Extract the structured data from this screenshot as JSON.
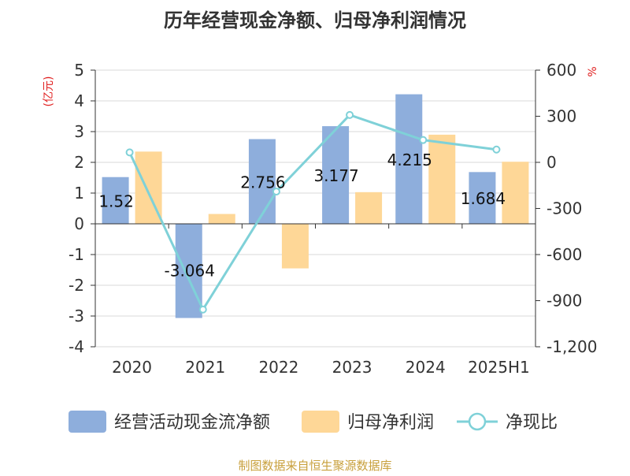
{
  "title": "历年经营现金净额、归母净利润情况",
  "left_unit": "(亿元)",
  "right_unit": "%",
  "source": "制图数据来自恒生聚源数据库",
  "colors": {
    "cash": "#8eaedc",
    "profit": "#fed797",
    "ratio": "#7fd1d8",
    "unit_red": "#e02020",
    "source_gold": "#c8a03c",
    "title": "#333333"
  },
  "chart_data": {
    "type": "bar",
    "categories": [
      "2020",
      "2021",
      "2022",
      "2023",
      "2024",
      "2025H1"
    ],
    "series": [
      {
        "name": "经营活动现金流净额",
        "type": "bar",
        "axis": "left",
        "values": [
          1.52,
          -3.064,
          2.756,
          3.177,
          4.215,
          1.684
        ],
        "labels": [
          "1.52",
          "-3.064",
          "2.756",
          "3.177",
          "4.215",
          "1.684"
        ]
      },
      {
        "name": "归母净利润",
        "type": "bar",
        "axis": "left",
        "values": [
          2.35,
          0.32,
          -1.45,
          1.03,
          2.9,
          2.02
        ]
      },
      {
        "name": "净现比",
        "type": "line",
        "axis": "right",
        "values": [
          64.68,
          -957.5,
          -190.07,
          308.45,
          145.34,
          83.37
        ]
      }
    ],
    "y_left": {
      "min": -4,
      "max": 5,
      "ticks": [
        "5",
        "4",
        "3",
        "2",
        "1",
        "0",
        "-1",
        "-2",
        "-3",
        "-4"
      ]
    },
    "y_right": {
      "min": -1200,
      "max": 600,
      "ticks": [
        "600",
        "300",
        "0",
        "-300",
        "-600",
        "-900",
        "-1,200"
      ]
    },
    "grid": true,
    "legend_position": "bottom"
  }
}
